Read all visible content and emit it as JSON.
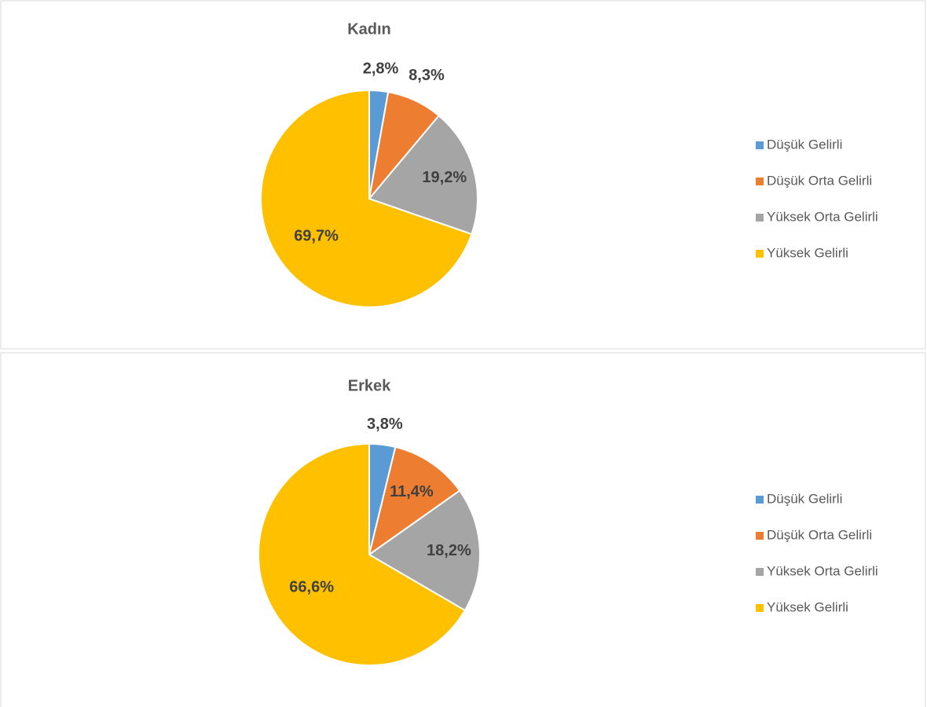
{
  "chart_data": [
    {
      "type": "pie",
      "title": "Kadın",
      "categories": [
        "Düşük Gelirli",
        "Düşük Orta Gelirli",
        "Yüksek Orta Gelirli",
        "Yüksek Gelirli"
      ],
      "values": [
        2.8,
        8.3,
        19.2,
        69.7
      ],
      "value_labels": [
        "2,8%",
        "8,3%",
        "19,2%",
        "69,7%"
      ],
      "colors": [
        "#5b9bd5",
        "#ed7d31",
        "#a5a5a5",
        "#ffc000"
      ],
      "legend": "right"
    },
    {
      "type": "pie",
      "title": "Erkek",
      "categories": [
        "Düşük Gelirli",
        "Düşük Orta Gelirli",
        "Yüksek Orta Gelirli",
        "Yüksek Gelirli"
      ],
      "values": [
        3.8,
        11.4,
        18.2,
        66.6
      ],
      "value_labels": [
        "3,8%",
        "11,4%",
        "18,2%",
        "66,6%"
      ],
      "colors": [
        "#5b9bd5",
        "#ed7d31",
        "#a5a5a5",
        "#ffc000"
      ],
      "legend": "right"
    }
  ]
}
